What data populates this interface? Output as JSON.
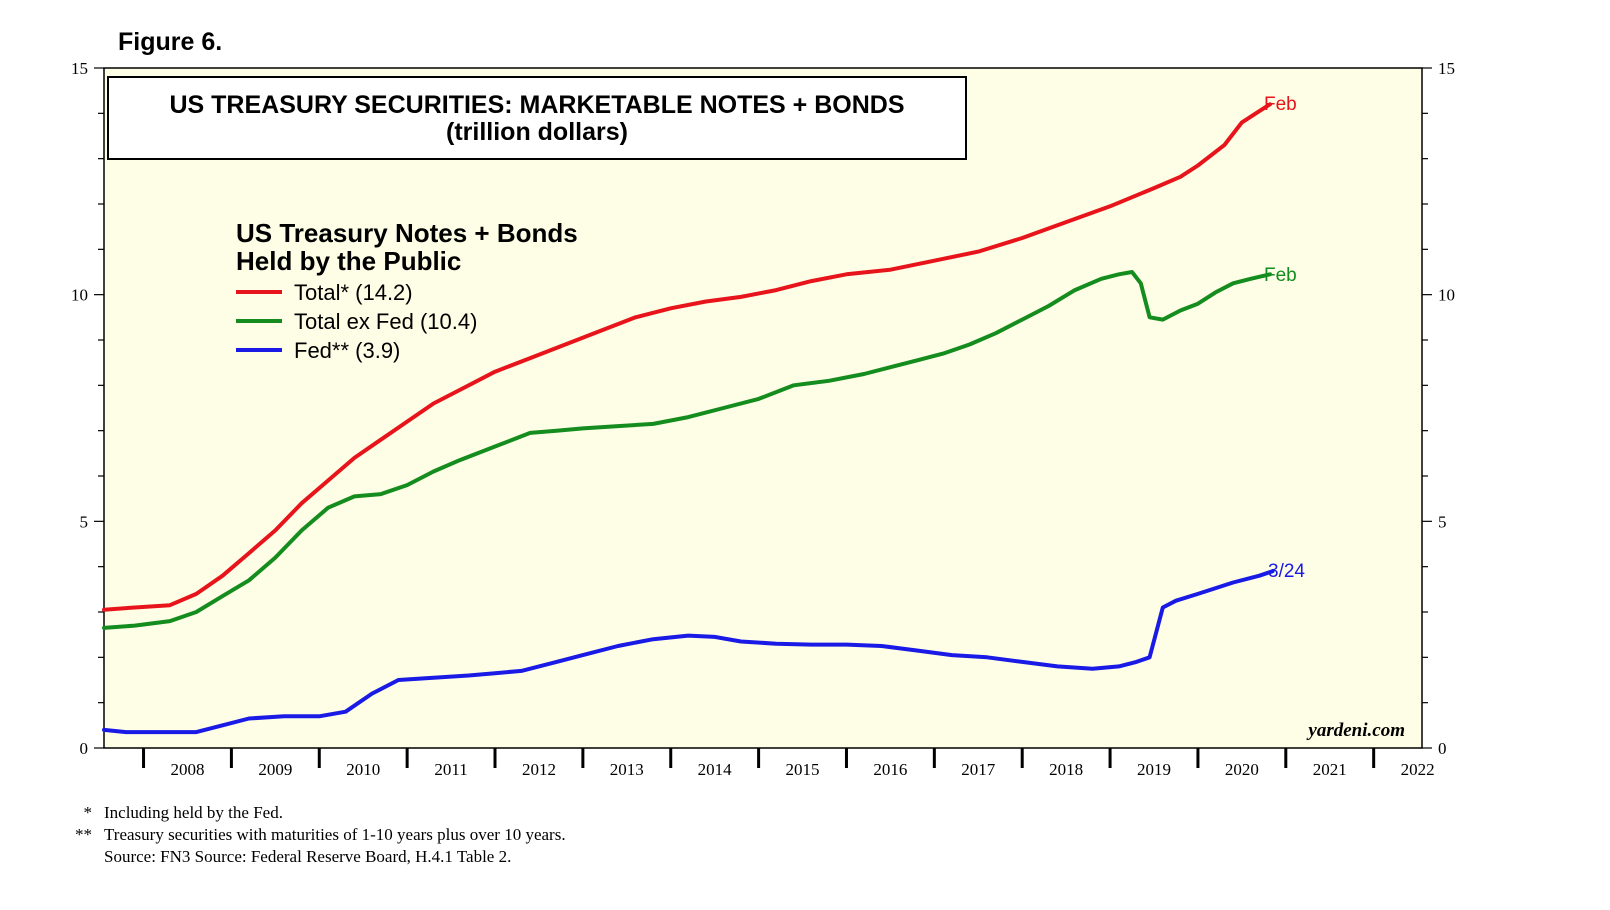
{
  "figure_label": "Figure 6.",
  "footnotes": [
    {
      "marker": "*",
      "text": "Including held by the Fed."
    },
    {
      "marker": "**",
      "text": "Treasury securities with maturities of 1-10 years plus over 10 years."
    },
    {
      "marker": "",
      "text": "Source: FN3 Source: Federal Reserve Board, H.4.1 Table 2."
    }
  ],
  "colors": {
    "plot_background": "#fefee6",
    "total": "#e8141b",
    "ex_fed": "#148c1e",
    "fed": "#1a1ae6"
  },
  "chart_data": {
    "type": "line",
    "title": "US TREASURY SECURITIES: MARKETABLE NOTES + BONDS",
    "subtitle": "(trillion dollars)",
    "legend_title": [
      "US Treasury Notes + Bonds",
      "Held by the Public"
    ],
    "watermark": "yardeni.com",
    "xlim": [
      2007.55,
      2022.55
    ],
    "ylim": [
      0,
      15
    ],
    "yticks": [
      0,
      5,
      10,
      15
    ],
    "x_tick_labels": [
      "2008",
      "2009",
      "2010",
      "2011",
      "2012",
      "2013",
      "2014",
      "2015",
      "2016",
      "2017",
      "2018",
      "2019",
      "2020",
      "2021",
      "2022"
    ],
    "grid": false,
    "series": [
      {
        "name": "Total*",
        "legend": "Total* (14.2)",
        "end_label": "Feb",
        "color": "#e8141b",
        "points": [
          [
            2007.55,
            3.05
          ],
          [
            2007.9,
            3.1
          ],
          [
            2008.3,
            3.15
          ],
          [
            2008.6,
            3.4
          ],
          [
            2008.9,
            3.8
          ],
          [
            2009.2,
            4.3
          ],
          [
            2009.5,
            4.8
          ],
          [
            2009.8,
            5.4
          ],
          [
            2010.1,
            5.9
          ],
          [
            2010.4,
            6.4
          ],
          [
            2010.7,
            6.8
          ],
          [
            2011.0,
            7.2
          ],
          [
            2011.3,
            7.6
          ],
          [
            2011.6,
            7.9
          ],
          [
            2012.0,
            8.3
          ],
          [
            2012.4,
            8.6
          ],
          [
            2012.8,
            8.9
          ],
          [
            2013.2,
            9.2
          ],
          [
            2013.6,
            9.5
          ],
          [
            2014.0,
            9.7
          ],
          [
            2014.4,
            9.85
          ],
          [
            2014.8,
            9.95
          ],
          [
            2015.2,
            10.1
          ],
          [
            2015.6,
            10.3
          ],
          [
            2016.0,
            10.45
          ],
          [
            2016.5,
            10.55
          ],
          [
            2017.0,
            10.75
          ],
          [
            2017.5,
            10.95
          ],
          [
            2018.0,
            11.25
          ],
          [
            2018.5,
            11.6
          ],
          [
            2019.0,
            11.95
          ],
          [
            2019.5,
            12.35
          ],
          [
            2019.8,
            12.6
          ],
          [
            2020.0,
            12.85
          ],
          [
            2020.3,
            13.3
          ],
          [
            2020.5,
            13.8
          ],
          [
            2020.7,
            14.05
          ],
          [
            2020.82,
            14.2
          ]
        ]
      },
      {
        "name": "Total ex Fed",
        "legend": "Total ex Fed (10.4)",
        "end_label": "Feb",
        "color": "#148c1e",
        "points": [
          [
            2007.55,
            2.65
          ],
          [
            2007.9,
            2.7
          ],
          [
            2008.3,
            2.8
          ],
          [
            2008.6,
            3.0
          ],
          [
            2008.9,
            3.35
          ],
          [
            2009.2,
            3.7
          ],
          [
            2009.5,
            4.2
          ],
          [
            2009.8,
            4.8
          ],
          [
            2010.1,
            5.3
          ],
          [
            2010.4,
            5.55
          ],
          [
            2010.7,
            5.6
          ],
          [
            2011.0,
            5.8
          ],
          [
            2011.3,
            6.1
          ],
          [
            2011.6,
            6.35
          ],
          [
            2012.0,
            6.65
          ],
          [
            2012.4,
            6.95
          ],
          [
            2012.7,
            7.0
          ],
          [
            2013.0,
            7.05
          ],
          [
            2013.4,
            7.1
          ],
          [
            2013.8,
            7.15
          ],
          [
            2014.2,
            7.3
          ],
          [
            2014.6,
            7.5
          ],
          [
            2015.0,
            7.7
          ],
          [
            2015.4,
            8.0
          ],
          [
            2015.8,
            8.1
          ],
          [
            2016.2,
            8.25
          ],
          [
            2016.5,
            8.4
          ],
          [
            2016.8,
            8.55
          ],
          [
            2017.1,
            8.7
          ],
          [
            2017.4,
            8.9
          ],
          [
            2017.7,
            9.15
          ],
          [
            2018.0,
            9.45
          ],
          [
            2018.3,
            9.75
          ],
          [
            2018.6,
            10.1
          ],
          [
            2018.9,
            10.35
          ],
          [
            2019.1,
            10.45
          ],
          [
            2019.25,
            10.5
          ],
          [
            2019.35,
            10.25
          ],
          [
            2019.45,
            9.5
          ],
          [
            2019.6,
            9.45
          ],
          [
            2019.8,
            9.65
          ],
          [
            2020.0,
            9.8
          ],
          [
            2020.2,
            10.05
          ],
          [
            2020.4,
            10.25
          ],
          [
            2020.6,
            10.35
          ],
          [
            2020.82,
            10.45
          ]
        ]
      },
      {
        "name": "Fed**",
        "legend": "Fed** (3.9)",
        "end_label": "3/24",
        "color": "#1a1ae6",
        "points": [
          [
            2007.55,
            0.4
          ],
          [
            2007.8,
            0.35
          ],
          [
            2008.2,
            0.35
          ],
          [
            2008.6,
            0.35
          ],
          [
            2008.9,
            0.5
          ],
          [
            2009.2,
            0.65
          ],
          [
            2009.6,
            0.7
          ],
          [
            2010.0,
            0.7
          ],
          [
            2010.3,
            0.8
          ],
          [
            2010.6,
            1.2
          ],
          [
            2010.9,
            1.5
          ],
          [
            2011.3,
            1.55
          ],
          [
            2011.7,
            1.6
          ],
          [
            2012.0,
            1.65
          ],
          [
            2012.3,
            1.7
          ],
          [
            2012.7,
            1.9
          ],
          [
            2013.0,
            2.05
          ],
          [
            2013.4,
            2.25
          ],
          [
            2013.8,
            2.4
          ],
          [
            2014.2,
            2.48
          ],
          [
            2014.5,
            2.45
          ],
          [
            2014.8,
            2.35
          ],
          [
            2015.2,
            2.3
          ],
          [
            2015.6,
            2.28
          ],
          [
            2016.0,
            2.28
          ],
          [
            2016.4,
            2.25
          ],
          [
            2016.8,
            2.15
          ],
          [
            2017.2,
            2.05
          ],
          [
            2017.6,
            2.0
          ],
          [
            2018.0,
            1.9
          ],
          [
            2018.4,
            1.8
          ],
          [
            2018.8,
            1.75
          ],
          [
            2019.1,
            1.8
          ],
          [
            2019.3,
            1.9
          ],
          [
            2019.45,
            2.0
          ],
          [
            2019.6,
            3.1
          ],
          [
            2019.75,
            3.25
          ],
          [
            2020.0,
            3.4
          ],
          [
            2020.4,
            3.65
          ],
          [
            2020.7,
            3.8
          ],
          [
            2020.85,
            3.9
          ]
        ]
      }
    ]
  }
}
